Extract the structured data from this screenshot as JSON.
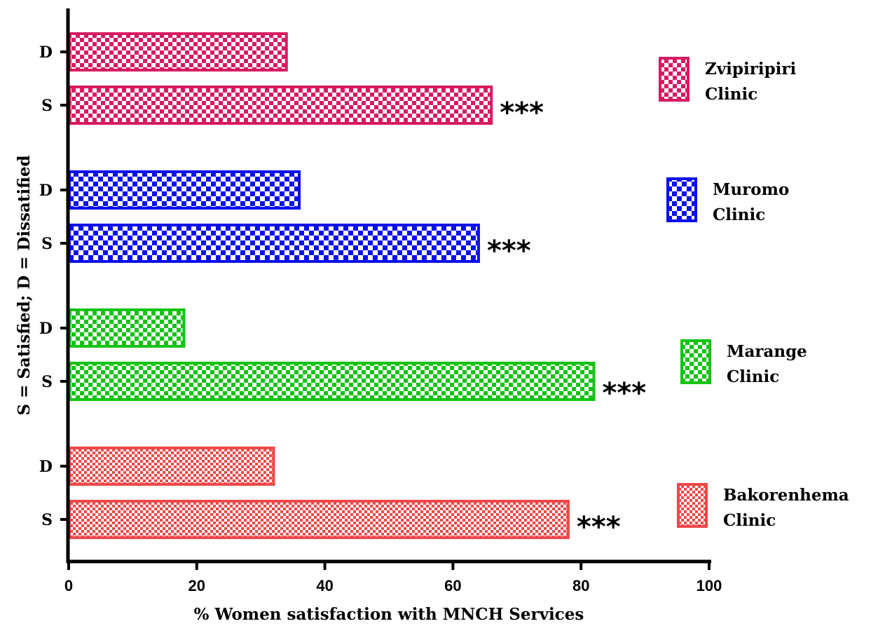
{
  "chart_data": {
    "type": "bar",
    "orientation": "horizontal",
    "xlabel": "% Women satisfaction with MNCH Services",
    "ylabel": "S = Satisfied; D = Dissatified",
    "xlim": [
      0,
      100
    ],
    "xticks": [
      "0",
      "20",
      "40",
      "60",
      "80",
      "100"
    ],
    "grid": false,
    "legend_position": "right",
    "groups": [
      {
        "name": "Zvipiripiri Clinic",
        "legend_lines": [
          "Zvipiripiri",
          "Clinic"
        ],
        "color": "#d81b60",
        "bars": [
          {
            "label": "D",
            "value": 34
          },
          {
            "label": "S",
            "value": 66,
            "annotation": "***"
          }
        ]
      },
      {
        "name": "Muromo Clinic",
        "legend_lines": [
          "Muromo",
          "Clinic"
        ],
        "color": "#0a10f0",
        "bars": [
          {
            "label": "D",
            "value": 36
          },
          {
            "label": "S",
            "value": 64,
            "annotation": "***"
          }
        ]
      },
      {
        "name": "Marange Clinic",
        "legend_lines": [
          "Marange",
          "Clinic"
        ],
        "color": "#12c412",
        "bars": [
          {
            "label": "D",
            "value": 18
          },
          {
            "label": "S",
            "value": 82,
            "annotation": "***"
          }
        ]
      },
      {
        "name": "Bakorenhema Clinic",
        "legend_lines": [
          "Bakorenhema",
          "Clinic"
        ],
        "color": "#f04848",
        "bars": [
          {
            "label": "D",
            "value": 32
          },
          {
            "label": "S",
            "value": 78,
            "annotation": "***"
          }
        ]
      }
    ]
  }
}
